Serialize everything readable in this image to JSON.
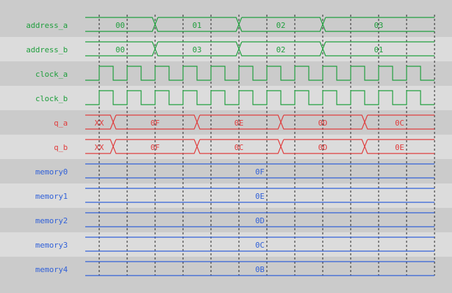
{
  "colors": {
    "green": "#1e9e3c",
    "red": "#e03c3c",
    "blue": "#3060d8",
    "row_dark": "#cbcbcb",
    "row_light": "#dcdcdc",
    "grid": "#222222"
  },
  "signals": [
    {
      "name": "address_a",
      "kind": "bus",
      "color": "green",
      "values": [
        "00",
        "01",
        "02",
        "03"
      ],
      "transitions": [
        5,
        11,
        17
      ]
    },
    {
      "name": "address_b",
      "kind": "bus",
      "color": "green",
      "values": [
        "00",
        "03",
        "02",
        "01"
      ],
      "transitions": [
        5,
        11,
        17
      ]
    },
    {
      "name": "clock_a",
      "kind": "clock",
      "color": "green"
    },
    {
      "name": "clock_b",
      "kind": "clock",
      "color": "green"
    },
    {
      "name": "q_a",
      "kind": "bus",
      "color": "red",
      "values": [
        "XX",
        "0F",
        "0E",
        "0D",
        "0C"
      ],
      "transitions": [
        2,
        8,
        14,
        20
      ]
    },
    {
      "name": "q_b",
      "kind": "bus",
      "color": "red",
      "values": [
        "XX",
        "0F",
        "0C",
        "0D",
        "0E"
      ],
      "transitions": [
        2,
        8,
        14,
        20
      ]
    },
    {
      "name": "memory0",
      "kind": "bus",
      "color": "blue",
      "values": [
        "0F"
      ],
      "transitions": []
    },
    {
      "name": "memory1",
      "kind": "bus",
      "color": "blue",
      "values": [
        "0E"
      ],
      "transitions": []
    },
    {
      "name": "memory2",
      "kind": "bus",
      "color": "blue",
      "values": [
        "0D"
      ],
      "transitions": []
    },
    {
      "name": "memory3",
      "kind": "bus",
      "color": "blue",
      "values": [
        "0C"
      ],
      "transitions": []
    },
    {
      "name": "memory4",
      "kind": "bus",
      "color": "blue",
      "values": [
        "0B"
      ],
      "transitions": []
    }
  ]
}
